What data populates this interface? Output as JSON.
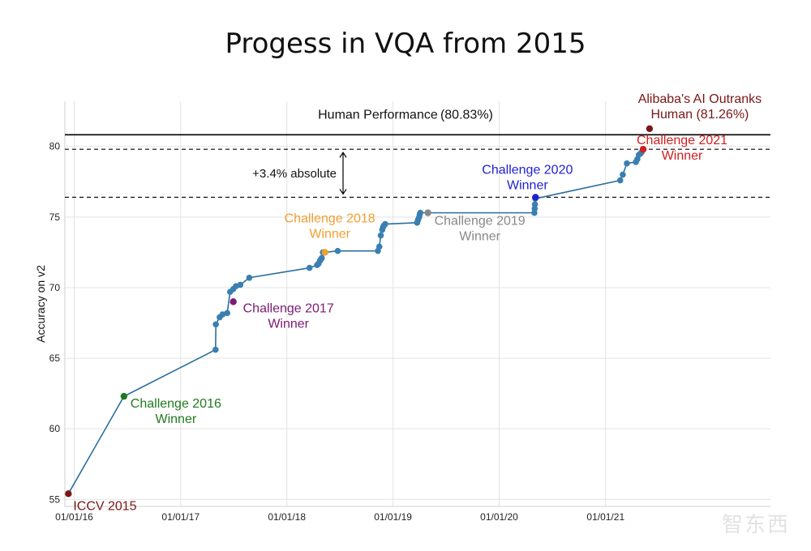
{
  "chart_data": {
    "type": "line",
    "title": "Progess in VQA from 2015",
    "xlabel": "",
    "ylabel": "Accuracy on v2",
    "x_ticks": [
      "01/01/16",
      "01/01/17",
      "01/01/18",
      "01/01/19",
      "01/01/20",
      "01/01/21"
    ],
    "ylim": [
      54.5,
      83.2
    ],
    "y_ticks": [
      55,
      60,
      65,
      70,
      75,
      80
    ],
    "grid": true,
    "line_color": "#2c6e9e",
    "point_color": "#3a7fb1",
    "series": [
      {
        "x": [
          "2015-12-12",
          "2016-06-20",
          "2017-05-01",
          "2017-05-02",
          "2017-05-15",
          "2017-05-25",
          "2017-06-10",
          "2017-06-20",
          "2017-07-01",
          "2017-07-10",
          "2017-07-25",
          "2017-08-25",
          "2018-03-20",
          "2018-04-15",
          "2018-04-20",
          "2018-04-25",
          "2018-04-28",
          "2018-05-01",
          "2018-05-05",
          "2018-05-10",
          "2018-06-25",
          "2018-11-10",
          "2018-11-15",
          "2018-11-20",
          "2018-11-25",
          "2018-11-28",
          "2018-12-01",
          "2018-12-05",
          "2019-03-25",
          "2019-03-28",
          "2019-04-01",
          "2019-04-03",
          "2019-04-05",
          "2020-05-01",
          "2020-05-02",
          "2020-05-03",
          "2020-05-04",
          "2021-02-20",
          "2021-03-01",
          "2021-03-15",
          "2021-04-15",
          "2021-04-20",
          "2021-04-25",
          "2021-05-01",
          "2021-05-05"
        ],
        "y": [
          55.4,
          62.3,
          65.6,
          67.4,
          67.9,
          68.1,
          68.2,
          69.7,
          69.9,
          70.1,
          70.2,
          70.7,
          71.4,
          71.6,
          71.7,
          71.9,
          72.0,
          72.1,
          72.5,
          72.5,
          72.6,
          72.6,
          72.9,
          73.7,
          74.1,
          74.3,
          74.4,
          74.5,
          74.6,
          74.8,
          75.0,
          75.2,
          75.3,
          75.3,
          75.6,
          75.9,
          76.3,
          77.6,
          78.0,
          78.8,
          78.9,
          79.1,
          79.4,
          79.5,
          79.6
        ]
      }
    ],
    "highlights": [
      {
        "x": "2015-12-12",
        "y": 55.4,
        "color": "#7b1616",
        "label": [
          "ICCV 2015"
        ]
      },
      {
        "x": "2016-06-20",
        "y": 62.3,
        "color": "#1f7a1f",
        "label": [
          "Challenge 2016",
          "Winner"
        ]
      },
      {
        "x": "2017-07-01",
        "y": 69.0,
        "color": "#7b1a73",
        "label": [
          "Challenge 2017",
          "Winner"
        ]
      },
      {
        "x": "2018-05-12",
        "y": 72.5,
        "color": "#f0a030",
        "label": [
          "Challenge 2018",
          "Winner"
        ]
      },
      {
        "x": "2019-05-01",
        "y": 75.3,
        "color": "#888888",
        "label": [
          "Challenge 2019",
          "Winner"
        ]
      },
      {
        "x": "2020-05-05",
        "y": 76.4,
        "color": "#1f1fd0",
        "label": [
          "Challenge 2020",
          "Winner"
        ]
      },
      {
        "x": "2021-05-10",
        "y": 79.8,
        "color": "#d11f1f",
        "label": [
          "Challenge 2021",
          "Winner"
        ]
      },
      {
        "x": "2021-06-01",
        "y": 81.26,
        "color": "#7b1616",
        "label": [
          "Alibaba's AI Outranks",
          "Human (81.26%)"
        ]
      }
    ],
    "reference_lines": [
      {
        "y": 80.83,
        "style": "solid",
        "label": "Human Performance (80.83%)"
      },
      {
        "y": 79.8,
        "style": "dashed"
      },
      {
        "y": 76.4,
        "style": "dashed"
      }
    ],
    "gap_annotation": {
      "from": 76.4,
      "to": 79.8,
      "label": "+3.4% absolute"
    }
  },
  "watermark": "智东西"
}
